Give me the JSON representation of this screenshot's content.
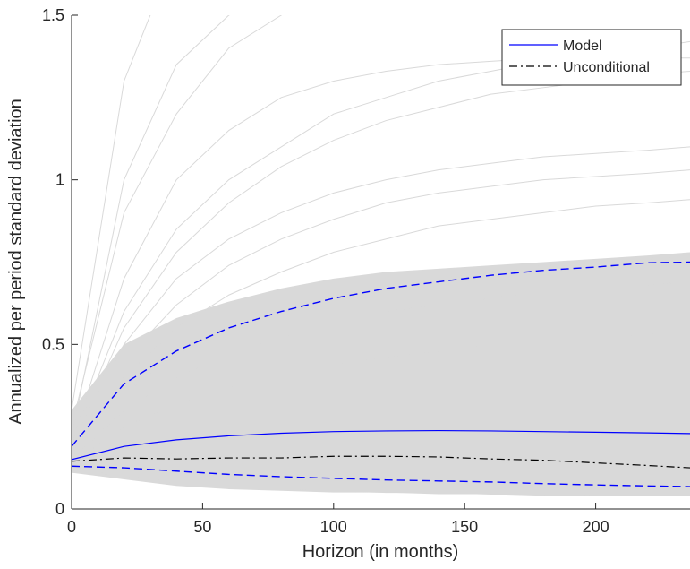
{
  "chart_data": {
    "type": "line",
    "xlabel": "Horizon (in months)",
    "ylabel": "Annualized per period standard deviation",
    "x": [
      0,
      20,
      40,
      60,
      80,
      100,
      120,
      140,
      160,
      180,
      200,
      220,
      236
    ],
    "xlim": [
      0,
      236
    ],
    "xticks": [
      0,
      50,
      100,
      150,
      200
    ],
    "ylim": [
      0,
      1.5
    ],
    "yticks": [
      0,
      0.5,
      1,
      1.5
    ],
    "legend": "upper right",
    "series": [
      {
        "name": "Model",
        "color": "#0000ff",
        "style": "solid",
        "values": [
          0.15,
          0.19,
          0.21,
          0.222,
          0.23,
          0.235,
          0.237,
          0.238,
          0.237,
          0.235,
          0.233,
          0.231,
          0.229
        ]
      },
      {
        "name": "Unconditional",
        "color": "#000000",
        "style": "dashdot",
        "values": [
          0.145,
          0.155,
          0.152,
          0.155,
          0.155,
          0.16,
          0.16,
          0.158,
          0.152,
          0.148,
          0.14,
          0.132,
          0.125
        ]
      }
    ],
    "bands": [
      {
        "color": "#0000ff",
        "style": "dashed",
        "values": [
          0.19,
          0.38,
          0.48,
          0.55,
          0.6,
          0.64,
          0.67,
          0.69,
          0.71,
          0.725,
          0.735,
          0.748,
          0.75
        ]
      },
      {
        "color": "#0000ff",
        "style": "dashed",
        "values": [
          0.13,
          0.125,
          0.115,
          0.105,
          0.098,
          0.093,
          0.088,
          0.085,
          0.082,
          0.077,
          0.073,
          0.07,
          0.068
        ]
      }
    ],
    "simulations": {
      "color": "#d9d9d9",
      "dense_lower": [
        0.11,
        0.09,
        0.07,
        0.06,
        0.055,
        0.05,
        0.05,
        0.045,
        0.045,
        0.04,
        0.04,
        0.04,
        0.04
      ],
      "dense_upper": [
        0.3,
        0.5,
        0.58,
        0.63,
        0.67,
        0.7,
        0.72,
        0.73,
        0.74,
        0.75,
        0.76,
        0.77,
        0.78
      ],
      "paths": [
        [
          0.3,
          1.3,
          1.7,
          1.9,
          2,
          2,
          2,
          2,
          2,
          2,
          2,
          2,
          2
        ],
        [
          0.25,
          0.9,
          1.2,
          1.4,
          1.5,
          1.6,
          1.6,
          1.6,
          1.6,
          1.6,
          1.6,
          1.6,
          1.6
        ],
        [
          0.2,
          0.6,
          0.85,
          1.0,
          1.1,
          1.2,
          1.25,
          1.3,
          1.33,
          1.36,
          1.38,
          1.4,
          1.42
        ],
        [
          0.2,
          0.5,
          0.7,
          0.82,
          0.9,
          0.96,
          1.0,
          1.03,
          1.05,
          1.07,
          1.08,
          1.09,
          1.1
        ],
        [
          0.18,
          0.4,
          0.55,
          0.65,
          0.72,
          0.78,
          0.82,
          0.86,
          0.88,
          0.9,
          0.92,
          0.93,
          0.94
        ],
        [
          0.17,
          0.35,
          0.47,
          0.55,
          0.6,
          0.64,
          0.67,
          0.7,
          0.72,
          0.74,
          0.75,
          0.76,
          0.77
        ],
        [
          0.2,
          0.7,
          1.0,
          1.15,
          1.25,
          1.3,
          1.33,
          1.35,
          1.36,
          1.37,
          1.37,
          1.37,
          1.37
        ],
        [
          0.22,
          1.0,
          1.35,
          1.5,
          1.58,
          1.6,
          1.6,
          1.6,
          1.6,
          1.6,
          1.6,
          1.6,
          1.6
        ],
        [
          0.15,
          0.3,
          0.4,
          0.47,
          0.52,
          0.56,
          0.6,
          0.62,
          0.64,
          0.66,
          0.67,
          0.68,
          0.69
        ],
        [
          0.16,
          0.45,
          0.62,
          0.74,
          0.82,
          0.88,
          0.93,
          0.96,
          0.98,
          1.0,
          1.01,
          1.02,
          1.03
        ],
        [
          0.12,
          0.15,
          0.17,
          0.18,
          0.19,
          0.2,
          0.2,
          0.2,
          0.2,
          0.2,
          0.2,
          0.2,
          0.2
        ],
        [
          0.12,
          0.1,
          0.08,
          0.07,
          0.06,
          0.055,
          0.05,
          0.05,
          0.045,
          0.045,
          0.04,
          0.04,
          0.04
        ],
        [
          0.19,
          0.55,
          0.78,
          0.93,
          1.04,
          1.12,
          1.18,
          1.22,
          1.26,
          1.28,
          1.3,
          1.32,
          1.33
        ],
        [
          0.14,
          0.25,
          0.32,
          0.37,
          0.41,
          0.44,
          0.46,
          0.48,
          0.5,
          0.51,
          0.52,
          0.53,
          0.54
        ]
      ]
    }
  }
}
